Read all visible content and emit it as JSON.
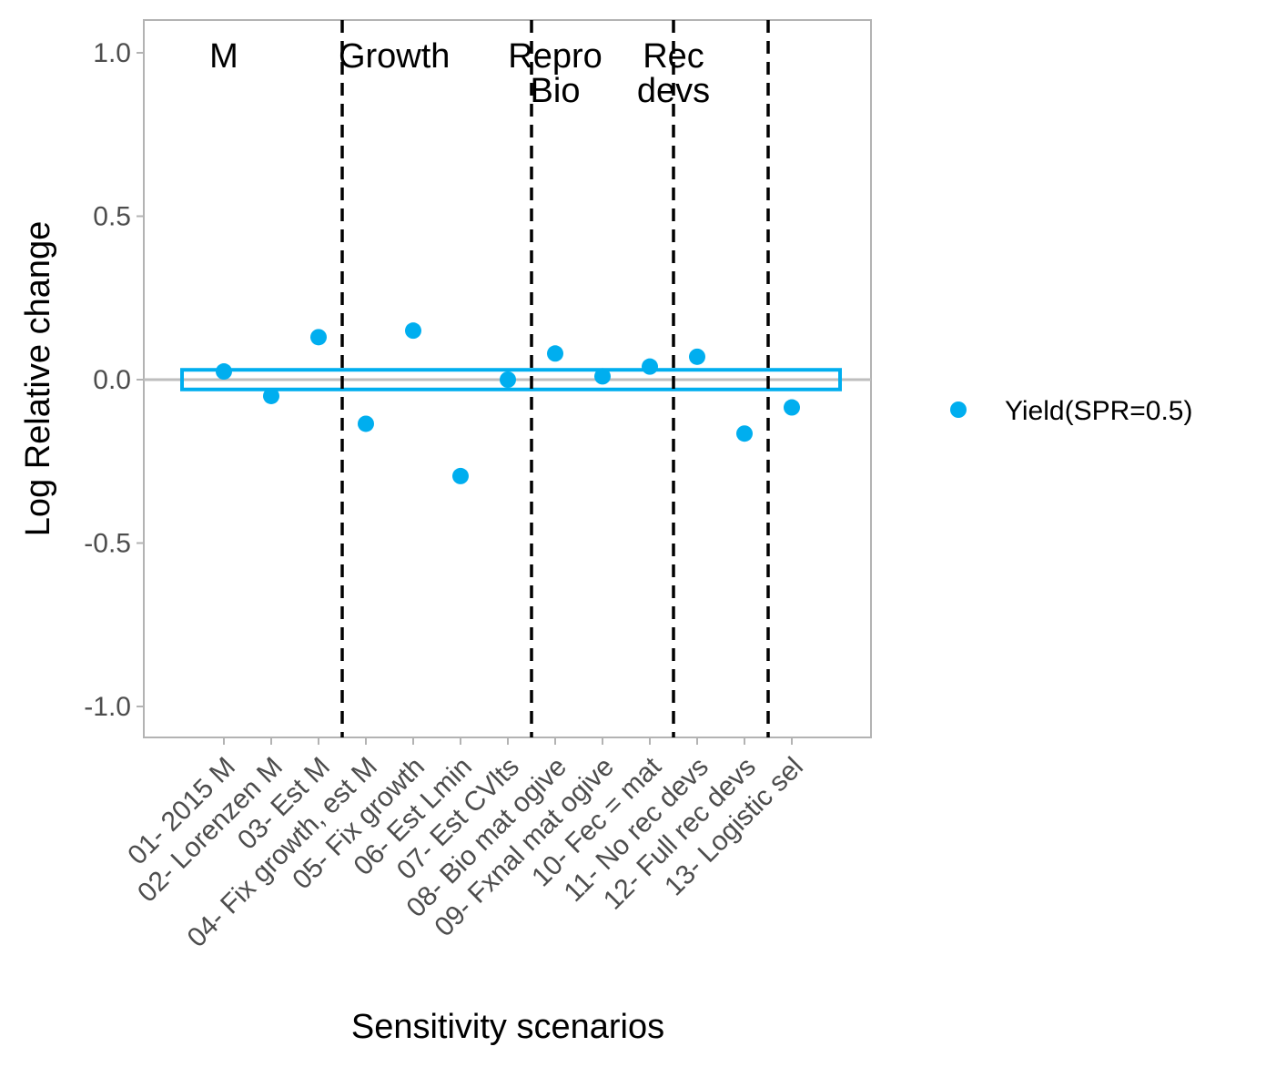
{
  "chart_data": {
    "type": "scatter",
    "xlabel": "Sensitivity scenarios",
    "ylabel": "Log Relative change",
    "ylim": [
      -1.1,
      1.1
    ],
    "yticks": [
      1.0,
      0.5,
      0.0,
      -0.5,
      -1.0
    ],
    "ytick_labels": [
      "1.0",
      "0.5",
      "0.0",
      "-0.5",
      "-1.0"
    ],
    "categories": [
      "01- 2015 M",
      "02- Lorenzen M",
      "03- Est M",
      "04- Fix growth, est M",
      "05- Fix growth",
      "06- Est Lmin",
      "07- Est CVlts",
      "08- Bio mat ogive",
      "09- Fxnal mat ogive",
      "10- Fec = mat",
      "11- No rec devs",
      "12- Full rec devs",
      "13- Logistic sel"
    ],
    "series": [
      {
        "name": "Yield(SPR=0.5)",
        "color": "#00aeef",
        "values": [
          0.025,
          -0.05,
          0.13,
          -0.135,
          0.15,
          -0.295,
          0.0,
          0.08,
          0.01,
          0.04,
          0.07,
          -0.165,
          -0.085
        ]
      }
    ],
    "reference_line": {
      "y": 0.0,
      "color": "#bebebe"
    },
    "interval_box": {
      "ymin": -0.03,
      "ymax": 0.03,
      "x_start": 0.0,
      "x_end": 14.0,
      "color": "#00aeef"
    },
    "group_dividers": [
      3.5,
      7.5,
      10.5,
      12.5
    ],
    "group_labels": [
      {
        "lines": [
          "M"
        ],
        "x_center": 1.0
      },
      {
        "lines": [
          "Growth"
        ],
        "x_center": 4.6
      },
      {
        "lines": [
          "Repro",
          "Bio"
        ],
        "x_center": 8.0
      },
      {
        "lines": [
          "Rec",
          "devs"
        ],
        "x_center": 10.5
      }
    ],
    "grid": false,
    "legend_position": "right"
  }
}
